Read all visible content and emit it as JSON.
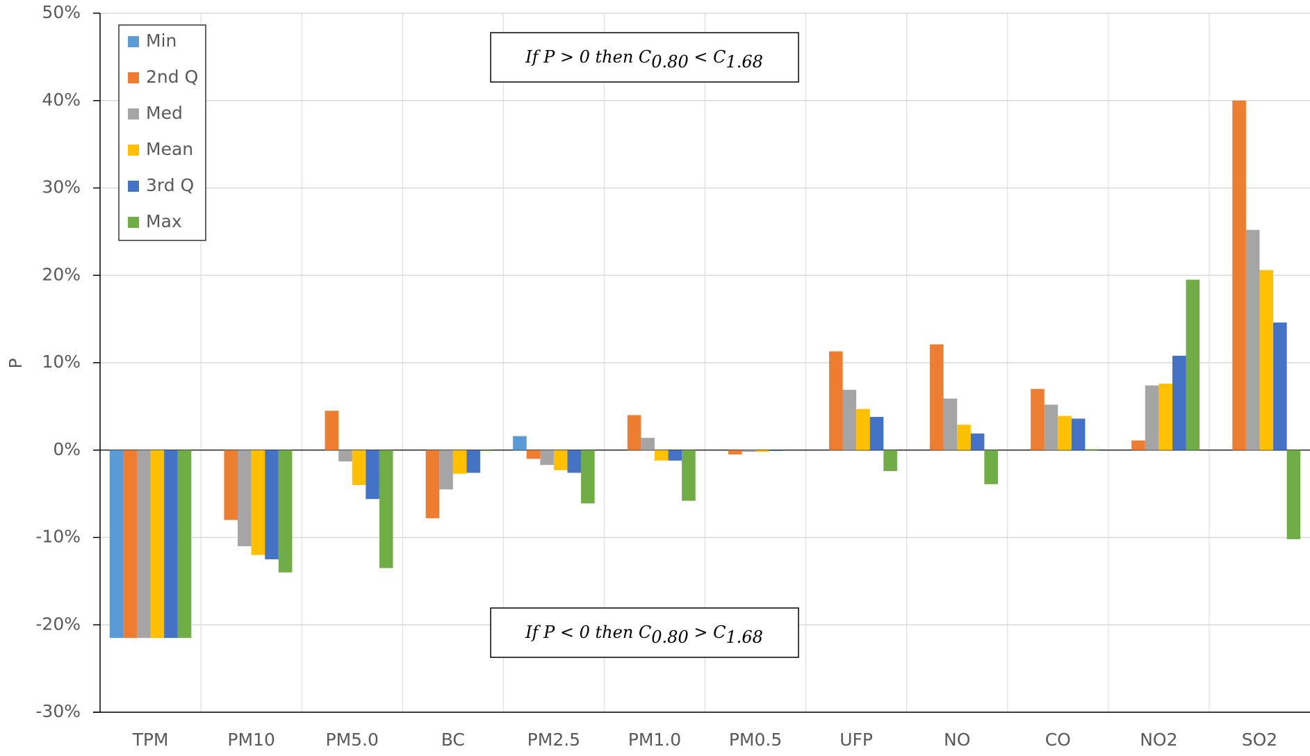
{
  "chart_data": {
    "type": "bar",
    "y_label": "P",
    "categories": [
      "TPM",
      "PM10",
      "PM5.0",
      "BC",
      "PM2.5",
      "PM1.0",
      "PM0.5",
      "UFP",
      "NO",
      "CO",
      "NO2",
      "SO2"
    ],
    "series": [
      {
        "name": "Min",
        "color": "#5b9bd5",
        "values": [
          -21.5,
          0,
          0,
          0,
          1.6,
          0,
          0,
          0,
          0,
          0,
          0,
          0
        ]
      },
      {
        "name": "2nd Q",
        "color": "#ed7d31",
        "values": [
          -21.5,
          -8,
          4.5,
          -7.8,
          -1,
          4,
          -0.5,
          11.3,
          12.1,
          7,
          1.1,
          40
        ]
      },
      {
        "name": "Med",
        "color": "#a5a5a5",
        "values": [
          -21.5,
          -11,
          -1.3,
          -4.5,
          -1.7,
          1.4,
          -0.2,
          6.9,
          5.9,
          5.2,
          7.4,
          25.2
        ]
      },
      {
        "name": "Mean",
        "color": "#ffc000",
        "values": [
          -21.5,
          -12,
          -4,
          -2.7,
          -2.3,
          -1.2,
          -0.2,
          4.7,
          2.9,
          3.9,
          7.6,
          20.6
        ]
      },
      {
        "name": "3rd Q",
        "color": "#4472c4",
        "values": [
          -21.5,
          -12.5,
          -5.6,
          -2.6,
          -2.6,
          -1.2,
          -0.1,
          3.8,
          1.9,
          3.6,
          10.8,
          14.6
        ]
      },
      {
        "name": "Max",
        "color": "#70ad47",
        "values": [
          -21.5,
          -14,
          -13.5,
          -0.1,
          -6.1,
          -5.8,
          0,
          -2.4,
          -3.9,
          0.1,
          19.5,
          -10.2
        ]
      }
    ],
    "ylim": [
      -30,
      50
    ],
    "yticks": [
      {
        "value": -30,
        "label": "-30%"
      },
      {
        "value": -20,
        "label": "-20%"
      },
      {
        "value": -10,
        "label": "-10%"
      },
      {
        "value": 0,
        "label": "0%"
      },
      {
        "value": 10,
        "label": "10%"
      },
      {
        "value": 20,
        "label": "20%"
      },
      {
        "value": 30,
        "label": "30%"
      },
      {
        "value": 40,
        "label": "40%"
      },
      {
        "value": 50,
        "label": "50%"
      }
    ],
    "grid": true,
    "legend": "top-left",
    "annotations": [
      {
        "parts": [
          "If P > 0 then C",
          "0.80",
          " < C",
          "1.68"
        ]
      },
      {
        "parts": [
          "If P < 0 then C",
          "0.80",
          " > C",
          "1.68"
        ]
      }
    ]
  }
}
